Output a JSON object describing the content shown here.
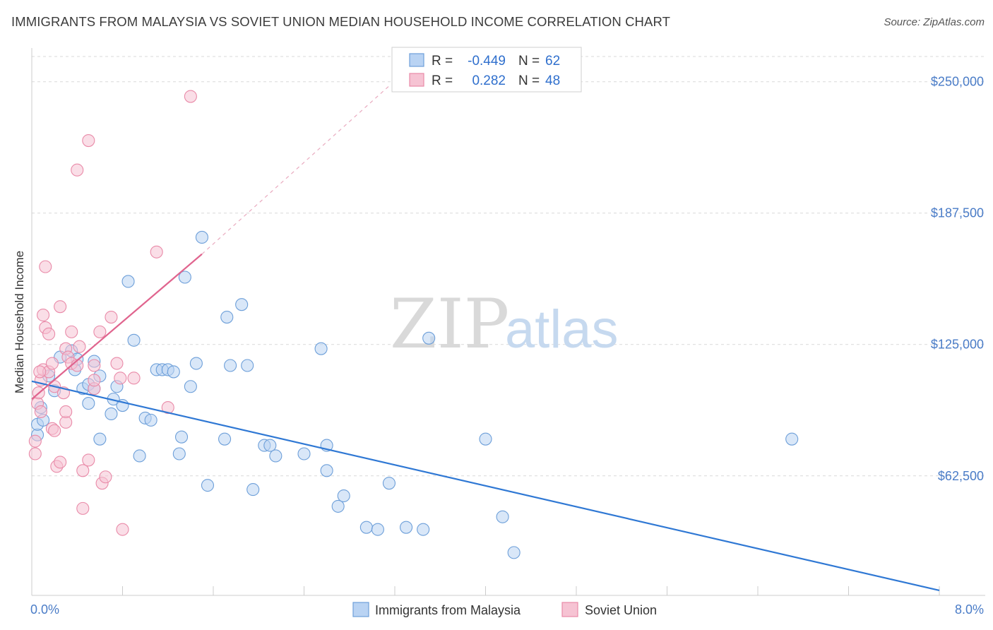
{
  "title": "IMMIGRANTS FROM MALAYSIA VS SOVIET UNION MEDIAN HOUSEHOLD INCOME CORRELATION CHART",
  "source": "Source: ZipAtlas.com",
  "watermark": {
    "part1": "ZIP",
    "part2": "atlas"
  },
  "colors": {
    "blue_fill": "#b9d3f3",
    "blue_stroke": "#6d9fd9",
    "blue_line": "#2f78d4",
    "pink_fill": "#f6c3d3",
    "pink_stroke": "#e98aa8",
    "pink_line": "#e0648e",
    "grid": "#d9d9d9",
    "tick_text": "#4a7cc7"
  },
  "legend": {
    "r_label": "R =",
    "n_label": "N =",
    "rows": [
      {
        "r": "-0.449",
        "n": "62"
      },
      {
        "r": "0.282",
        "n": "48"
      }
    ]
  },
  "chart_data": {
    "type": "scatter",
    "title": "IMMIGRANTS FROM MALAYSIA VS SOVIET UNION MEDIAN HOUSEHOLD INCOME CORRELATION CHART",
    "xlabel": "",
    "ylabel": "Median Household Income",
    "xlim": [
      0,
      8
    ],
    "ylim": [
      10000,
      262000
    ],
    "x_tick_labels": [
      "0.0%",
      "8.0%"
    ],
    "y_ticks": [
      62500,
      125000,
      187500,
      250000
    ],
    "y_tick_labels": [
      "$62,500",
      "$125,000",
      "$187,500",
      "$250,000"
    ],
    "grid": true,
    "legend_position": "top-center",
    "series": [
      {
        "name": "Immigrants from Malaysia",
        "color": "#6d9fd9",
        "points": [
          [
            0.05,
            82000
          ],
          [
            0.05,
            87000
          ],
          [
            0.1,
            89000
          ],
          [
            0.08,
            95000
          ],
          [
            0.15,
            110000
          ],
          [
            0.2,
            103000
          ],
          [
            0.25,
            119000
          ],
          [
            0.35,
            122000
          ],
          [
            0.38,
            113000
          ],
          [
            0.4,
            118000
          ],
          [
            0.45,
            104000
          ],
          [
            0.5,
            106000
          ],
          [
            0.5,
            97000
          ],
          [
            0.55,
            104000
          ],
          [
            0.55,
            117000
          ],
          [
            0.6,
            110000
          ],
          [
            0.6,
            80000
          ],
          [
            0.7,
            92000
          ],
          [
            0.72,
            99000
          ],
          [
            0.75,
            105000
          ],
          [
            0.8,
            96000
          ],
          [
            0.85,
            155000
          ],
          [
            0.9,
            127000
          ],
          [
            0.95,
            72000
          ],
          [
            1.0,
            90000
          ],
          [
            1.05,
            89000
          ],
          [
            1.1,
            113000
          ],
          [
            1.15,
            113000
          ],
          [
            1.2,
            113000
          ],
          [
            1.25,
            112000
          ],
          [
            1.3,
            73000
          ],
          [
            1.32,
            81000
          ],
          [
            1.35,
            157000
          ],
          [
            1.4,
            105000
          ],
          [
            1.45,
            116000
          ],
          [
            1.5,
            176000
          ],
          [
            1.55,
            58000
          ],
          [
            1.7,
            80000
          ],
          [
            1.72,
            138000
          ],
          [
            1.75,
            115000
          ],
          [
            1.85,
            144000
          ],
          [
            1.9,
            115000
          ],
          [
            1.95,
            56000
          ],
          [
            2.05,
            77000
          ],
          [
            2.1,
            77000
          ],
          [
            2.15,
            72000
          ],
          [
            2.4,
            73000
          ],
          [
            2.55,
            123000
          ],
          [
            2.6,
            65000
          ],
          [
            2.6,
            77000
          ],
          [
            2.7,
            48000
          ],
          [
            2.75,
            53000
          ],
          [
            2.95,
            38000
          ],
          [
            3.05,
            37000
          ],
          [
            3.15,
            59000
          ],
          [
            3.3,
            38000
          ],
          [
            3.45,
            37000
          ],
          [
            3.5,
            128000
          ],
          [
            4.0,
            80000
          ],
          [
            4.15,
            43000
          ],
          [
            4.25,
            26000
          ],
          [
            6.7,
            80000
          ]
        ]
      },
      {
        "name": "Soviet Union",
        "color": "#e98aa8",
        "points": [
          [
            0.03,
            73000
          ],
          [
            0.03,
            79000
          ],
          [
            0.05,
            97000
          ],
          [
            0.06,
            102000
          ],
          [
            0.08,
            93000
          ],
          [
            0.08,
            108000
          ],
          [
            0.1,
            113000
          ],
          [
            0.1,
            139000
          ],
          [
            0.12,
            162000
          ],
          [
            0.12,
            133000
          ],
          [
            0.15,
            130000
          ],
          [
            0.15,
            112000
          ],
          [
            0.18,
            116000
          ],
          [
            0.18,
            85000
          ],
          [
            0.2,
            84000
          ],
          [
            0.2,
            105000
          ],
          [
            0.22,
            67000
          ],
          [
            0.25,
            143000
          ],
          [
            0.25,
            69000
          ],
          [
            0.28,
            102000
          ],
          [
            0.3,
            88000
          ],
          [
            0.3,
            93000
          ],
          [
            0.3,
            123000
          ],
          [
            0.32,
            119000
          ],
          [
            0.35,
            131000
          ],
          [
            0.35,
            116000
          ],
          [
            0.4,
            115000
          ],
          [
            0.4,
            208000
          ],
          [
            0.42,
            124000
          ],
          [
            0.45,
            65000
          ],
          [
            0.45,
            47000
          ],
          [
            0.5,
            222000
          ],
          [
            0.5,
            70000
          ],
          [
            0.55,
            115000
          ],
          [
            0.55,
            104000
          ],
          [
            0.55,
            108000
          ],
          [
            0.6,
            131000
          ],
          [
            0.62,
            59000
          ],
          [
            0.65,
            62000
          ],
          [
            0.7,
            138000
          ],
          [
            0.75,
            116000
          ],
          [
            0.78,
            109000
          ],
          [
            0.8,
            37000
          ],
          [
            0.9,
            109000
          ],
          [
            1.1,
            169000
          ],
          [
            1.2,
            95000
          ],
          [
            1.4,
            243000
          ],
          [
            0.07,
            112000
          ]
        ]
      }
    ],
    "trend_lines": [
      {
        "series": "Immigrants from Malaysia",
        "x": [
          0.0,
          8.0
        ],
        "y": [
          107500,
          8000
        ]
      },
      {
        "series": "Soviet Union",
        "x": [
          0.0,
          1.5
        ],
        "y": [
          99000,
          168000
        ],
        "dashed_extension_to": [
          3.15,
          248000
        ]
      }
    ]
  }
}
